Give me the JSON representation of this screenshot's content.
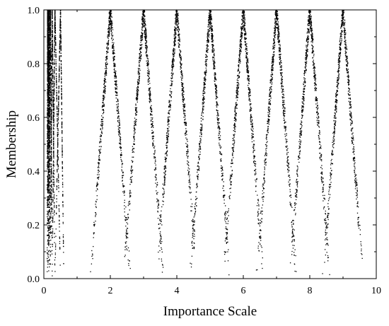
{
  "chart_data": {
    "type": "scatter",
    "title": "",
    "xlabel": "Importance Scale",
    "ylabel": "Membership",
    "xlim": [
      0,
      10
    ],
    "ylim": [
      0,
      1.0
    ],
    "x_ticks": [
      0,
      2,
      4,
      6,
      8,
      10
    ],
    "x_tick_labels": [
      "0",
      "2",
      "4",
      "6",
      "8",
      "10"
    ],
    "y_ticks": [
      0.0,
      0.2,
      0.4,
      0.6,
      0.8,
      1.0
    ],
    "y_tick_labels": [
      "0.0",
      "0.2",
      "0.4",
      "0.6",
      "0.8",
      "1.0"
    ],
    "grid": false,
    "legend": "none",
    "marker_color": "#000000",
    "series": [
      {
        "peak": 0.111,
        "y_at_low": 0,
        "low": 0.1,
        "high": 0.125,
        "values_description": "membership rises linearly from 0 to 1 across each side of the peak"
      },
      {
        "peak": 0.125,
        "low": 0.111,
        "high": 0.143
      },
      {
        "peak": 0.143,
        "low": 0.125,
        "high": 0.167
      },
      {
        "peak": 0.167,
        "low": 0.143,
        "high": 0.2
      },
      {
        "peak": 0.2,
        "low": 0.167,
        "high": 0.25
      },
      {
        "peak": 0.25,
        "low": 0.2,
        "high": 0.333
      },
      {
        "peak": 0.333,
        "low": 0.25,
        "high": 0.5
      },
      {
        "peak": 0.5,
        "low": 0.333,
        "high": 0.6
      },
      {
        "peak": 2,
        "low": 1.4,
        "high": 2.6
      },
      {
        "peak": 3,
        "low": 2.4,
        "high": 3.6
      },
      {
        "peak": 4,
        "low": 3.4,
        "high": 4.6
      },
      {
        "peak": 5,
        "low": 4.4,
        "high": 5.6
      },
      {
        "peak": 6,
        "low": 5.4,
        "high": 6.6
      },
      {
        "peak": 7,
        "low": 6.4,
        "high": 7.6
      },
      {
        "peak": 8,
        "low": 7.4,
        "high": 8.6
      },
      {
        "peak": 9,
        "low": 8.4,
        "high": 9.6
      }
    ]
  }
}
